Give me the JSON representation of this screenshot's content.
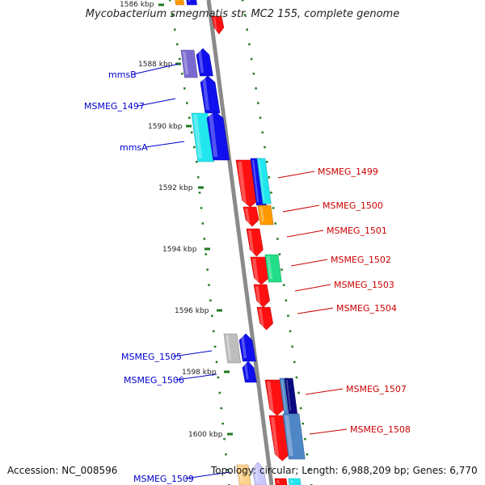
{
  "title": "Mycobacterium smegmatis str. MC2 155, complete genome",
  "footer": {
    "accession": "Accession: NC_008596",
    "summary": "Topology: circular; Length: 6,988,209 bp; Genes: 6,770"
  },
  "scale_labels": [
    "1586 kbp",
    "1588 kbp",
    "1590 kbp",
    "1592 kbp",
    "1594 kbp",
    "1596 kbp",
    "1598 kbp",
    "1600 kbp"
  ],
  "left_gene_labels": [
    "mmsB",
    "MSMEG_1497",
    "mmsA",
    "MSMEG_1505",
    "MSMEG_1506",
    "MSMEG_1509"
  ],
  "right_gene_labels": [
    "MSMEG_1499",
    "MSMEG_1500",
    "MSMEG_1501",
    "MSMEG_1502",
    "MSMEG_1503",
    "MSMEG_1504",
    "MSMEG_1507",
    "MSMEG_1508"
  ],
  "colors": {
    "backbone": "#8a8a8a",
    "tick": "#1f7a1f",
    "label_left": "#0000cc",
    "label_right": "#cc0000",
    "red": "#ff1010",
    "blue": "#1010ee",
    "slate": "#7a6ad0",
    "cyan": "#22e6ee",
    "orange": "#ff9900",
    "green": "#22dd88",
    "gray": "#bdbdbd",
    "navy": "#0a0a80",
    "steel": "#4f86c6",
    "peach": "#ffd28a",
    "lavender": "#c8c8ff"
  }
}
